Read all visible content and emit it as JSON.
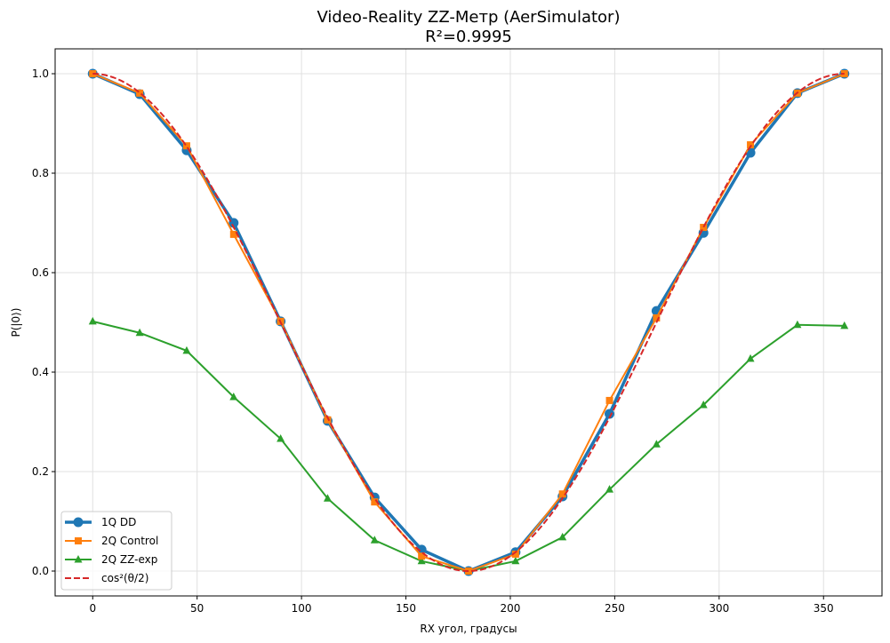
{
  "chart_data": {
    "type": "line",
    "title": "Video-Reality ZZ-Метр (AerSimulator)",
    "subtitle": "R²=0.9995",
    "xlabel": "RX угол, градусы",
    "ylabel": "P(|0⟩)",
    "xlim": [
      -18,
      378
    ],
    "ylim": [
      -0.05,
      1.05
    ],
    "xticks": [
      "0",
      "50",
      "100",
      "150",
      "200",
      "250",
      "300",
      "350"
    ],
    "yticks": [
      "0.0",
      "0.2",
      "0.4",
      "0.6",
      "0.8",
      "1.0"
    ],
    "grid": true,
    "legend_placement": "lower-left",
    "x": [
      0,
      22.5,
      45,
      67.5,
      90,
      112.5,
      135,
      157.5,
      180,
      202.5,
      225,
      247.5,
      270,
      292.5,
      315,
      337.5,
      360
    ],
    "series": [
      {
        "name": "1Q DD",
        "color": "#1f77b4",
        "marker": "circle",
        "style": "solid",
        "values": [
          1.0,
          0.959,
          0.846,
          0.7,
          0.502,
          0.302,
          0.148,
          0.043,
          0.0,
          0.038,
          0.15,
          0.316,
          0.523,
          0.68,
          0.841,
          0.961,
          1.0
        ]
      },
      {
        "name": "2Q Control",
        "color": "#ff7f0e",
        "marker": "square",
        "style": "solid",
        "values": [
          1.0,
          0.961,
          0.855,
          0.677,
          0.502,
          0.304,
          0.139,
          0.03,
          0.0,
          0.034,
          0.155,
          0.343,
          0.509,
          0.691,
          0.857,
          0.961,
          1.0
        ]
      },
      {
        "name": "2Q ZZ-exp",
        "color": "#2ca02c",
        "marker": "triangle",
        "style": "solid",
        "values": [
          0.502,
          0.479,
          0.443,
          0.35,
          0.266,
          0.146,
          0.062,
          0.02,
          0.0,
          0.02,
          0.068,
          0.164,
          0.255,
          0.334,
          0.427,
          0.495,
          0.493
        ]
      },
      {
        "name": "cos²(θ/2)",
        "color": "#d62728",
        "marker": "none",
        "style": "dashed",
        "function": "cos^2(theta/2)"
      }
    ]
  }
}
